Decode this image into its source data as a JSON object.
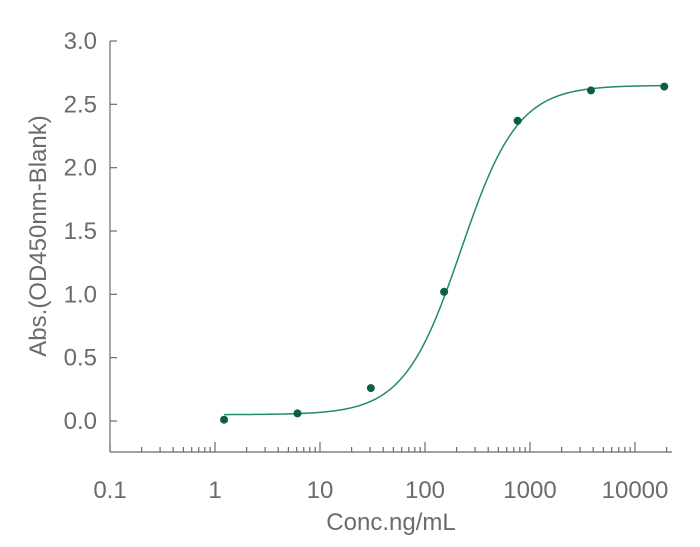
{
  "chart_data": {
    "type": "scatter",
    "title": "",
    "xlabel": "Conc.ng/mL",
    "ylabel": "Abs.(OD450nm-Blank)",
    "x_scale": "log",
    "xlim": [
      0.1,
      20000
    ],
    "ylim": [
      -0.25,
      3.0
    ],
    "x_ticks": [
      0.1,
      1,
      10,
      100,
      1000,
      10000
    ],
    "x_tick_labels": [
      "0.1",
      "1",
      "10",
      "100",
      "1000",
      "10000"
    ],
    "y_ticks": [
      0.0,
      0.5,
      1.0,
      1.5,
      2.0,
      2.5,
      3.0
    ],
    "y_tick_labels": [
      "0.0",
      "0.5",
      "1.0",
      "1.5",
      "2.0",
      "2.5",
      "3.0"
    ],
    "grid": false,
    "legend": "none",
    "series": [
      {
        "x": [
          1.22,
          6.1,
          30.5,
          152,
          762,
          3810,
          19000
        ],
        "y": [
          0.01,
          0.06,
          0.26,
          1.02,
          2.37,
          2.61,
          2.64
        ]
      }
    ],
    "fit_curve": {
      "model": "4PL",
      "bottom": 0.05,
      "top": 2.65,
      "ec50": 220,
      "hill": 1.6
    },
    "colors": {
      "marker": "#0b5e47",
      "line": "#1f8a6e"
    }
  }
}
